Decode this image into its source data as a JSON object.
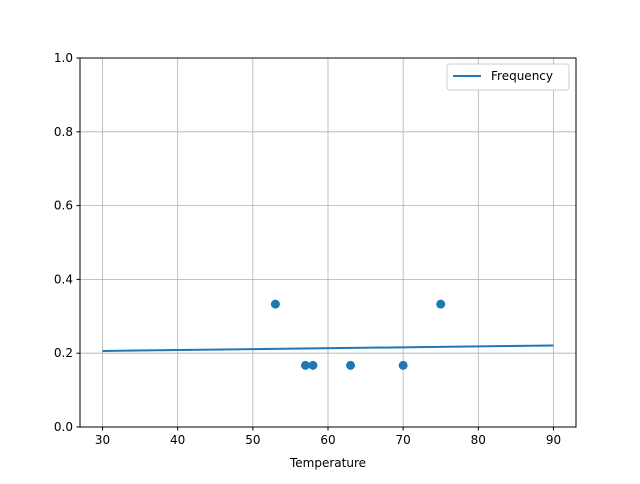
{
  "chart_data": {
    "type": "scatter+line",
    "title": "",
    "xlabel": "Temperature",
    "ylabel": "",
    "xlim": [
      27,
      93
    ],
    "ylim": [
      0,
      1
    ],
    "xticks": [
      "30",
      "40",
      "50",
      "60",
      "70",
      "80",
      "90"
    ],
    "yticks": [
      "0.0",
      "0.2",
      "0.4",
      "0.6",
      "0.8",
      "1.0"
    ],
    "grid": true,
    "legend_position": "top-right",
    "color": "#1f77b4",
    "series": [
      {
        "name": "Frequency",
        "kind": "line",
        "x": [
          30,
          90
        ],
        "y": [
          0.206,
          0.221
        ]
      },
      {
        "kind": "scatter",
        "x": [
          53,
          57,
          58,
          63,
          70,
          75
        ],
        "y": [
          0.333,
          0.167,
          0.167,
          0.167,
          0.167,
          0.333
        ]
      }
    ]
  }
}
